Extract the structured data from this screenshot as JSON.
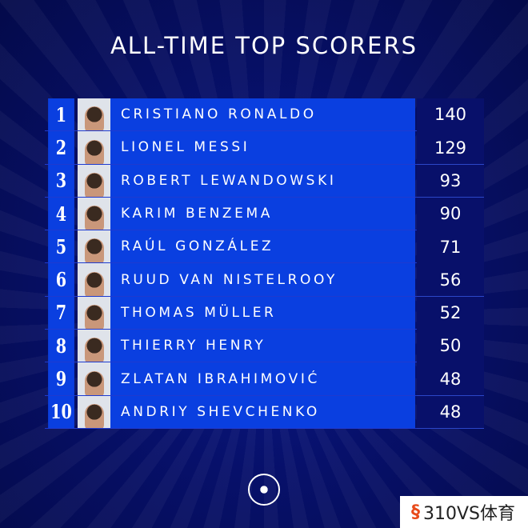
{
  "title": "ALL-TIME TOP SCORERS",
  "rows": [
    {
      "rank": "1",
      "name": "CRISTIANO RONALDO",
      "goals": "140"
    },
    {
      "rank": "2",
      "name": "LIONEL MESSI",
      "goals": "129"
    },
    {
      "rank": "3",
      "name": "ROBERT LEWANDOWSKI",
      "goals": "93"
    },
    {
      "rank": "4",
      "name": "KARIM BENZEMA",
      "goals": "90"
    },
    {
      "rank": "5",
      "name": "RAÚL GONZÁLEZ",
      "goals": "71"
    },
    {
      "rank": "6",
      "name": "RUUD VAN NISTELROOY",
      "goals": "56"
    },
    {
      "rank": "7",
      "name": "THOMAS MÜLLER",
      "goals": "52"
    },
    {
      "rank": "8",
      "name": "THIERRY HENRY",
      "goals": "50"
    },
    {
      "rank": "9",
      "name": "ZLATAN IBRAHIMOVIĆ",
      "goals": "48"
    },
    {
      "rank": "10",
      "name": "ANDRIY SHEVCHENKO",
      "goals": "48"
    }
  ],
  "watermark": {
    "logo": "§",
    "text": "310VS体育"
  },
  "icons": {
    "footer": "champions-league-starball-icon"
  },
  "colors": {
    "name_bg": "#0a3fe0",
    "goals_bg": "#08106a",
    "background": "#07106a"
  }
}
